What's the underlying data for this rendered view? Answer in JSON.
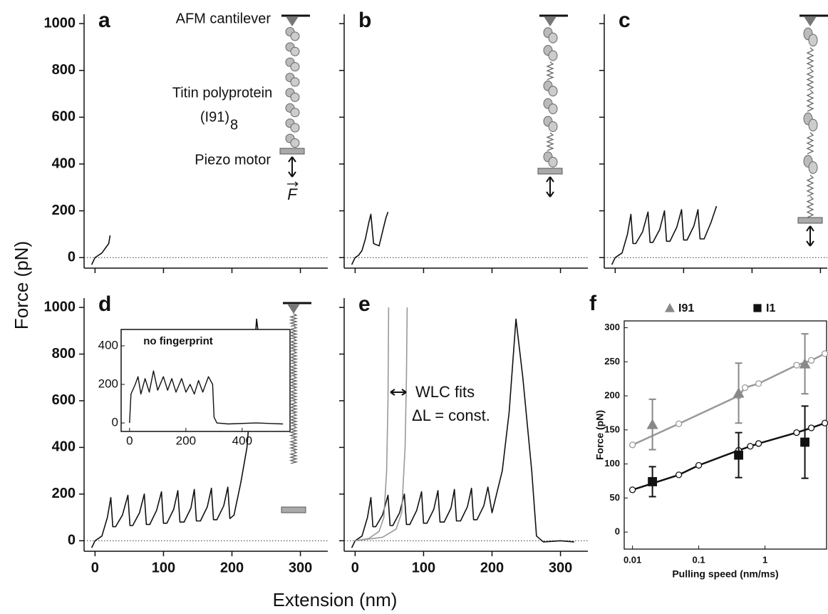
{
  "figure": {
    "y_label": "Force (pN)",
    "x_label": "Extension (nm)"
  },
  "diagram": {
    "cantilever_label": "AFM cantilever",
    "protein_label": "Titin polyprotein",
    "protein_name": "(I91)",
    "protein_subscript": "8",
    "piezo_label": "Piezo motor",
    "force_symbol": "F"
  },
  "chart_data": [
    {
      "type": "line",
      "panel_label": "a",
      "xlim": [
        -16,
        340
      ],
      "ylim": [
        -45,
        1040
      ],
      "xticks": [
        0,
        100,
        200,
        300
      ],
      "yticks": [
        0,
        200,
        400,
        600,
        800,
        1000
      ],
      "tick_labels": {
        "x": false,
        "y": true
      },
      "zero_line": true,
      "series": [
        {
          "color": "#111111",
          "x": [
            -5,
            0,
            5,
            10,
            15,
            20,
            22
          ],
          "values": [
            -30,
            0,
            10,
            20,
            40,
            60,
            95
          ]
        }
      ]
    },
    {
      "type": "line",
      "panel_label": "b",
      "xlim": [
        -16,
        340
      ],
      "ylim": [
        -45,
        1040
      ],
      "xticks": [
        0,
        100,
        200,
        300
      ],
      "yticks": [
        0,
        200,
        400,
        600,
        800,
        1000
      ],
      "tick_labels": {
        "x": false,
        "y": false
      },
      "zero_line": true,
      "series": [
        {
          "color": "#111111",
          "x": [
            -5,
            0,
            5,
            10,
            15,
            20,
            23,
            27,
            35,
            40,
            45,
            48
          ],
          "values": [
            -30,
            0,
            10,
            30,
            80,
            150,
            185,
            60,
            50,
            110,
            170,
            195
          ]
        }
      ]
    },
    {
      "type": "line",
      "panel_label": "c",
      "xlim": [
        -16,
        310
      ],
      "ylim": [
        -45,
        1040
      ],
      "xticks": [
        0,
        100,
        200,
        300
      ],
      "yticks": [
        0,
        200,
        400,
        600,
        800,
        1000
      ],
      "tick_labels": {
        "x": false,
        "y": false
      },
      "zero_line": true,
      "series": [
        {
          "color": "#111111",
          "x": [
            -5,
            0,
            10,
            18,
            23,
            26,
            30,
            40,
            48,
            51,
            55,
            65,
            72,
            75,
            80,
            90,
            97,
            100,
            105,
            115,
            121,
            124,
            130,
            140,
            148
          ],
          "values": [
            -30,
            0,
            20,
            100,
            185,
            60,
            60,
            110,
            195,
            65,
            65,
            120,
            200,
            70,
            70,
            130,
            205,
            75,
            75,
            135,
            205,
            80,
            80,
            150,
            220
          ]
        }
      ]
    },
    {
      "type": "line",
      "panel_label": "d",
      "xlim": [
        -16,
        340
      ],
      "ylim": [
        -45,
        1040
      ],
      "xticks": [
        0,
        100,
        200,
        300
      ],
      "yticks": [
        0,
        200,
        400,
        600,
        800,
        1000
      ],
      "tick_labels": {
        "x": true,
        "y": true
      },
      "zero_line": true,
      "series": [
        {
          "color": "#111111",
          "x": [
            -5,
            0,
            10,
            18,
            23,
            26,
            30,
            40,
            48,
            51,
            55,
            65,
            72,
            75,
            80,
            90,
            97,
            100,
            105,
            115,
            121,
            124,
            130,
            140,
            145,
            148,
            154,
            164,
            170,
            173,
            178,
            188,
            194,
            197,
            203,
            213,
            222,
            230,
            236,
            242,
            250
          ],
          "values": [
            -30,
            0,
            20,
            100,
            185,
            60,
            60,
            110,
            195,
            65,
            65,
            120,
            200,
            70,
            70,
            130,
            210,
            75,
            75,
            135,
            215,
            80,
            80,
            140,
            220,
            85,
            85,
            145,
            225,
            90,
            90,
            150,
            230,
            95,
            110,
            250,
            400,
            700,
            950,
            800,
            480
          ]
        }
      ],
      "inset": {
        "title": "no fingerprint",
        "xlim": [
          -30,
          570
        ],
        "ylim": [
          -44,
          485
        ],
        "xticks": [
          0,
          200,
          400
        ],
        "yticks": [
          0,
          200,
          400
        ],
        "series": [
          {
            "color": "#111111",
            "x": [
              0,
              5,
              20,
              30,
              40,
              55,
              70,
              85,
              100,
              120,
              135,
              150,
              165,
              185,
              200,
              215,
              230,
              245,
              260,
              280,
              295,
              300,
              310,
              350,
              450,
              545
            ],
            "values": [
              0,
              150,
              200,
              240,
              150,
              230,
              160,
              270,
              170,
              240,
              170,
              230,
              160,
              230,
              160,
              200,
              150,
              220,
              160,
              240,
              200,
              30,
              0,
              -5,
              0,
              -5
            ]
          }
        ]
      }
    },
    {
      "type": "line",
      "panel_label": "e",
      "xlim": [
        -16,
        340
      ],
      "ylim": [
        -45,
        1040
      ],
      "xticks": [
        0,
        100,
        200,
        300
      ],
      "yticks": [
        0,
        200,
        400,
        600,
        800,
        1000
      ],
      "tick_labels": {
        "x": true,
        "y": false
      },
      "zero_line": true,
      "annotations": [
        "WLC fits",
        "ΔL = const."
      ],
      "series": [
        {
          "color": "#111111",
          "x": [
            -5,
            0,
            10,
            18,
            23,
            26,
            30,
            40,
            48,
            51,
            55,
            65,
            72,
            75,
            80,
            90,
            97,
            100,
            105,
            115,
            121,
            124,
            130,
            140,
            145,
            148,
            154,
            164,
            170,
            173,
            178,
            188,
            194,
            200,
            215,
            225,
            235,
            245,
            258,
            265,
            275,
            300,
            320
          ],
          "values": [
            -30,
            0,
            20,
            100,
            185,
            60,
            60,
            110,
            195,
            65,
            65,
            120,
            200,
            70,
            70,
            130,
            210,
            75,
            75,
            135,
            215,
            80,
            80,
            140,
            220,
            85,
            85,
            145,
            225,
            90,
            90,
            150,
            230,
            120,
            300,
            550,
            950,
            700,
            300,
            20,
            -5,
            0,
            -5
          ]
        },
        {
          "color": "#999999",
          "x": [
            0,
            20,
            35,
            42,
            46,
            48,
            49
          ],
          "values": [
            0,
            10,
            40,
            100,
            300,
            600,
            1000
          ]
        },
        {
          "color": "#999999",
          "x": [
            0,
            40,
            60,
            68,
            73,
            75,
            76
          ],
          "values": [
            0,
            15,
            50,
            120,
            400,
            700,
            1000
          ]
        }
      ]
    },
    {
      "type": "scatter",
      "panel_label": "f",
      "x_label": "Pulling speed (nm/ms)",
      "y_label": "Force (pN)",
      "xscale": "log",
      "xlim": [
        0.0075,
        8.5
      ],
      "ylim": [
        -25,
        310
      ],
      "xticks": [
        0.01,
        0.1,
        1
      ],
      "yticks": [
        0,
        50,
        100,
        150,
        200,
        250,
        300
      ],
      "legend": "top",
      "series": [
        {
          "name": "I91",
          "color": "#888888",
          "marker": "triangle",
          "x": [
            0.02,
            0.4,
            4
          ],
          "values": [
            158,
            204,
            247
          ],
          "errors": [
            37,
            44,
            44
          ]
        },
        {
          "name": "I1",
          "color": "#111111",
          "marker": "square",
          "x": [
            0.02,
            0.4,
            4
          ],
          "values": [
            74,
            113,
            132
          ],
          "errors": [
            22,
            33,
            53
          ]
        }
      ],
      "fits": [
        {
          "color": "#999999",
          "x": [
            0.01,
            0.05,
            0.4,
            0.5,
            0.8,
            3,
            5,
            8
          ],
          "values": [
            128,
            159,
            200,
            212,
            218,
            245,
            252,
            262
          ]
        },
        {
          "color": "#111111",
          "x": [
            0.01,
            0.05,
            0.1,
            0.4,
            0.6,
            0.8,
            3,
            5,
            8
          ],
          "values": [
            62,
            84,
            98,
            120,
            126,
            130,
            146,
            153,
            160
          ]
        }
      ]
    }
  ]
}
